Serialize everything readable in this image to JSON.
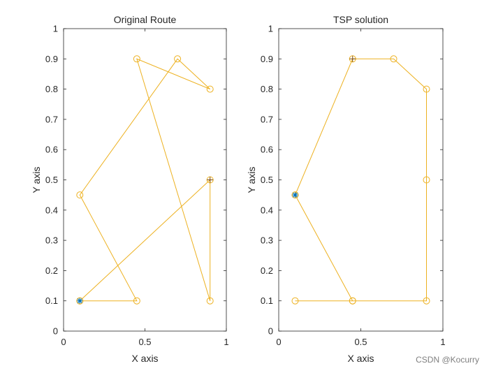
{
  "chart_data": [
    {
      "type": "line",
      "title": "Original Route",
      "xlabel": "X axis",
      "ylabel": "Y axis",
      "xlim": [
        0,
        1
      ],
      "ylim": [
        0,
        1
      ],
      "xticks": [
        0,
        0.5,
        1
      ],
      "yticks": [
        0,
        0.1,
        0.2,
        0.3,
        0.4,
        0.5,
        0.6,
        0.7,
        0.8,
        0.9,
        1
      ],
      "xtick_labels": [
        "0",
        "0.5",
        "1"
      ],
      "ytick_labels": [
        "0",
        "0.1",
        "0.2",
        "0.3",
        "0.4",
        "0.5",
        "0.6",
        "0.7",
        "0.8",
        "0.9",
        "1"
      ],
      "line_color": "#EDB120",
      "start_marker_color": "#0072BD",
      "route": [
        {
          "x": 0.1,
          "y": 0.1
        },
        {
          "x": 0.45,
          "y": 0.1
        },
        {
          "x": 0.1,
          "y": 0.45
        },
        {
          "x": 0.7,
          "y": 0.9
        },
        {
          "x": 0.9,
          "y": 0.8
        },
        {
          "x": 0.45,
          "y": 0.9
        },
        {
          "x": 0.9,
          "y": 0.1
        },
        {
          "x": 0.9,
          "y": 0.5
        },
        {
          "x": 0.1,
          "y": 0.1
        }
      ],
      "start": {
        "x": 0.1,
        "y": 0.1
      },
      "plus_markers": [
        {
          "x": 0.9,
          "y": 0.5
        }
      ]
    },
    {
      "type": "line",
      "title": "TSP solution",
      "xlabel": "X axis",
      "ylabel": "Y axis",
      "xlim": [
        0,
        1
      ],
      "ylim": [
        0,
        1
      ],
      "xticks": [
        0,
        0.5,
        1
      ],
      "yticks": [
        0,
        0.1,
        0.2,
        0.3,
        0.4,
        0.5,
        0.6,
        0.7,
        0.8,
        0.9,
        1
      ],
      "xtick_labels": [
        "0",
        "0.5",
        "1"
      ],
      "ytick_labels": [
        "0",
        "0.1",
        "0.2",
        "0.3",
        "0.4",
        "0.5",
        "0.6",
        "0.7",
        "0.8",
        "0.9",
        "1"
      ],
      "line_color": "#EDB120",
      "start_marker_color": "#0072BD",
      "route": [
        {
          "x": 0.1,
          "y": 0.45
        },
        {
          "x": 0.45,
          "y": 0.9
        },
        {
          "x": 0.7,
          "y": 0.9
        },
        {
          "x": 0.9,
          "y": 0.8
        },
        {
          "x": 0.9,
          "y": 0.5
        },
        {
          "x": 0.9,
          "y": 0.1
        },
        {
          "x": 0.45,
          "y": 0.1
        },
        {
          "x": 0.1,
          "y": 0.1
        },
        {
          "x": 0.45,
          "y": 0.1
        },
        {
          "x": 0.1,
          "y": 0.45
        }
      ],
      "start": {
        "x": 0.1,
        "y": 0.45
      },
      "plus_markers": [
        {
          "x": 0.45,
          "y": 0.9
        }
      ]
    }
  ],
  "watermark": "CSDN @Kocurry"
}
